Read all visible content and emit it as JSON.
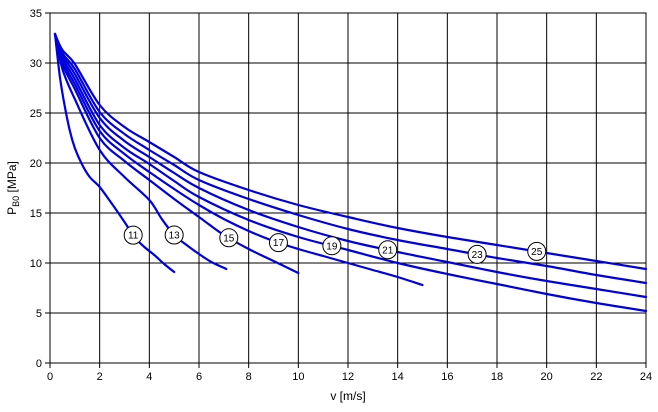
{
  "chart_data": {
    "type": "line",
    "title": "",
    "xlabel": "v [m/s]",
    "ylabel": "PB0 [MPa]",
    "ylabel_main": "P",
    "ylabel_sub": "B0",
    "ylabel_unit": " [MPa]",
    "xlim": [
      0,
      24
    ],
    "ylim": [
      0,
      35
    ],
    "x_ticks": [
      0,
      2,
      4,
      6,
      8,
      10,
      12,
      14,
      16,
      18,
      20,
      22,
      24
    ],
    "y_ticks": [
      0,
      5,
      10,
      15,
      20,
      25,
      30,
      35
    ],
    "grid": true,
    "legend_position": "none",
    "colors": {
      "curve": "#0000DD",
      "grid": "#000000",
      "frame": "#000000",
      "background": "#FFFFFF",
      "marker_fill": "#FFFFFF",
      "marker_stroke": "#000000",
      "text": "#000000"
    },
    "series": [
      {
        "name": "11",
        "label": "11",
        "label_at_v": 3.35,
        "points": [
          [
            0.2,
            32.9
          ],
          [
            0.4,
            28.6
          ],
          [
            0.6,
            25.6
          ],
          [
            0.8,
            23.2
          ],
          [
            1,
            21.5
          ],
          [
            1.3,
            19.8
          ],
          [
            1.6,
            18.6
          ],
          [
            2,
            17.6
          ],
          [
            2.5,
            15.9
          ],
          [
            3,
            14.1
          ],
          [
            3.4,
            12.6
          ],
          [
            3.8,
            11.6
          ],
          [
            4.2,
            10.8
          ],
          [
            4.6,
            9.9
          ],
          [
            5,
            9.1
          ]
        ]
      },
      {
        "name": "13",
        "label": "13",
        "label_at_v": 5.0,
        "points": [
          [
            0.2,
            32.9
          ],
          [
            0.5,
            29.4
          ],
          [
            1,
            26.4
          ],
          [
            2,
            21.3
          ],
          [
            3,
            18.6
          ],
          [
            4,
            16.3
          ],
          [
            4.5,
            14.4
          ],
          [
            5,
            12.8
          ],
          [
            5.5,
            11.8
          ],
          [
            6,
            10.9
          ],
          [
            6.5,
            10.1
          ],
          [
            7.1,
            9.4
          ]
        ]
      },
      {
        "name": "15",
        "label": "15",
        "label_at_v": 7.2,
        "points": [
          [
            0.2,
            32.9
          ],
          [
            0.5,
            29.9
          ],
          [
            1,
            27.4
          ],
          [
            2,
            22.5
          ],
          [
            3,
            20.2
          ],
          [
            4,
            18.3
          ],
          [
            5,
            16.4
          ],
          [
            6,
            14.6
          ],
          [
            7,
            12.8
          ],
          [
            8,
            11.4
          ],
          [
            9,
            10.2
          ],
          [
            10,
            9.0
          ]
        ]
      },
      {
        "name": "17",
        "label": "17",
        "label_at_v": 9.2,
        "points": [
          [
            0.2,
            32.9
          ],
          [
            0.5,
            30.2
          ],
          [
            1,
            27.9
          ],
          [
            2,
            23.2
          ],
          [
            3,
            20.9
          ],
          [
            4,
            19.1
          ],
          [
            5,
            17.4
          ],
          [
            6,
            15.8
          ],
          [
            7,
            14.4
          ],
          [
            8,
            13.2
          ],
          [
            9,
            12.2
          ],
          [
            10,
            11.4
          ],
          [
            11,
            10.7
          ],
          [
            12,
            10.0
          ],
          [
            13,
            9.3
          ],
          [
            14,
            8.6
          ],
          [
            15,
            7.8
          ]
        ]
      },
      {
        "name": "19",
        "label": "19",
        "label_at_v": 11.35,
        "points": [
          [
            0.2,
            32.9
          ],
          [
            0.5,
            30.5
          ],
          [
            1,
            28.4
          ],
          [
            2,
            23.8
          ],
          [
            3,
            21.5
          ],
          [
            4,
            19.9
          ],
          [
            5,
            18.2
          ],
          [
            6,
            16.6
          ],
          [
            8,
            14.3
          ],
          [
            10,
            12.6
          ],
          [
            12,
            11.3
          ],
          [
            14,
            10.0
          ],
          [
            16,
            8.9
          ],
          [
            18,
            7.9
          ],
          [
            20,
            6.9
          ],
          [
            22,
            6.0
          ],
          [
            24,
            5.2
          ]
        ]
      },
      {
        "name": "21",
        "label": "21",
        "label_at_v": 13.6,
        "points": [
          [
            0.2,
            32.9
          ],
          [
            0.5,
            30.8
          ],
          [
            1,
            28.9
          ],
          [
            2,
            24.5
          ],
          [
            3,
            22.2
          ],
          [
            4,
            20.6
          ],
          [
            5,
            19.0
          ],
          [
            6,
            17.5
          ],
          [
            8,
            15.3
          ],
          [
            10,
            13.6
          ],
          [
            12,
            12.2
          ],
          [
            14,
            11.1
          ],
          [
            16,
            10.1
          ],
          [
            18,
            9.1
          ],
          [
            20,
            8.2
          ],
          [
            22,
            7.4
          ],
          [
            24,
            6.6
          ]
        ]
      },
      {
        "name": "23",
        "label": "23",
        "label_at_v": 17.2,
        "points": [
          [
            0.2,
            32.9
          ],
          [
            0.5,
            31.0
          ],
          [
            1,
            29.4
          ],
          [
            2,
            25.1
          ],
          [
            3,
            22.9
          ],
          [
            4,
            21.3
          ],
          [
            5,
            19.8
          ],
          [
            6,
            18.3
          ],
          [
            8,
            16.4
          ],
          [
            10,
            14.8
          ],
          [
            12,
            13.4
          ],
          [
            14,
            12.3
          ],
          [
            16,
            11.4
          ],
          [
            18,
            10.5
          ],
          [
            20,
            9.7
          ],
          [
            22,
            8.8
          ],
          [
            24,
            8.0
          ]
        ]
      },
      {
        "name": "25",
        "label": "25",
        "label_at_v": 19.6,
        "points": [
          [
            0.2,
            32.9
          ],
          [
            0.5,
            31.3
          ],
          [
            1,
            29.9
          ],
          [
            2,
            25.8
          ],
          [
            3,
            23.6
          ],
          [
            4,
            22.1
          ],
          [
            5,
            20.6
          ],
          [
            6,
            19.1
          ],
          [
            8,
            17.3
          ],
          [
            10,
            15.8
          ],
          [
            12,
            14.6
          ],
          [
            14,
            13.5
          ],
          [
            16,
            12.6
          ],
          [
            18,
            11.8
          ],
          [
            20,
            11.0
          ],
          [
            22,
            10.2
          ],
          [
            24,
            9.4
          ]
        ]
      }
    ]
  }
}
